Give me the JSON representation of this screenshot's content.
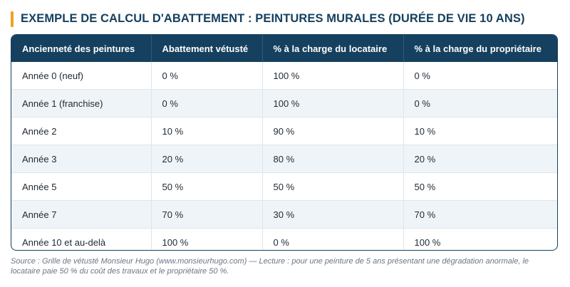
{
  "title": "EXEMPLE DE CALCUL D'ABATTEMENT : PEINTURES MURALES (DURÉE DE VIE 10 ANS)",
  "colors": {
    "header_bg": "#15405f",
    "accent_bar": "#f0a31c",
    "stripe": "#eff4f8"
  },
  "table": {
    "headers": [
      "Ancienneté des peintures",
      "Abattement vétusté",
      "% à la charge du locataire",
      "% à la charge du propriétaire"
    ],
    "rows": [
      [
        "Année 0 (neuf)",
        "0 %",
        "100 %",
        "0 %"
      ],
      [
        "Année 1 (franchise)",
        "0 %",
        "100 %",
        "0 %"
      ],
      [
        "Année 2",
        "10 %",
        "90 %",
        "10 %"
      ],
      [
        "Année 3",
        "20 %",
        "80 %",
        "20 %"
      ],
      [
        "Année 5",
        "50 %",
        "50 %",
        "50 %"
      ],
      [
        "Année 7",
        "70 %",
        "30 %",
        "70 %"
      ],
      [
        "Année 10 et au-delà",
        "100 %",
        "0 %",
        "100 %"
      ]
    ]
  },
  "footnote": "Source : Grille de vétusté Monsieur Hugo (www.monsieurhugo.com) — Lecture : pour une peinture de 5 ans présentant une dégradation anormale, le locataire paie 50 % du coût des travaux et le propriétaire 50 %."
}
